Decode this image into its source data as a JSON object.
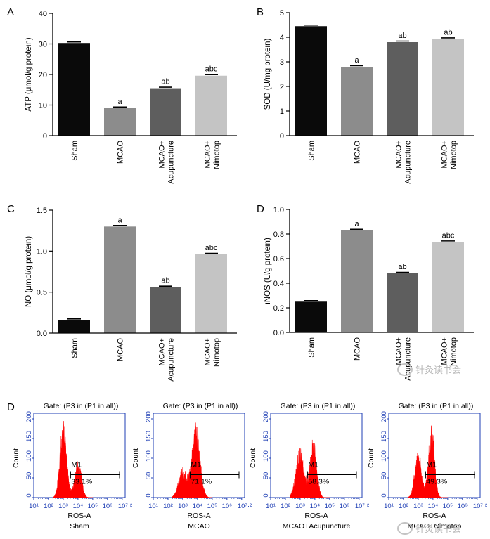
{
  "figure_watermark": "针灸读书会",
  "colors": {
    "Sham": "#0a0a0a",
    "MCAO": "#8c8c8c",
    "MCAO+Acupuncture": "#5e5e5e",
    "MCAO+Nimotop": "#c4c4c4",
    "histogram": "#ff0000",
    "flow_axis": "#1f3fb5"
  },
  "chart_data": [
    {
      "panel": "A",
      "type": "bar",
      "ylabel": "ATP (μmol/g protein)",
      "categories": [
        "Sham",
        "MCAO",
        "MCAO+\nAcupuncture",
        "MCAO+\nNimotop"
      ],
      "values": [
        30.3,
        9.0,
        15.5,
        19.6
      ],
      "annotations": [
        "",
        "a",
        "ab",
        "abc"
      ],
      "ylim": [
        0,
        40
      ],
      "yticks": [
        "0",
        "10",
        "20",
        "30",
        "40"
      ]
    },
    {
      "panel": "B",
      "type": "bar",
      "ylabel": "SOD (U/mg protein)",
      "categories": [
        "Sham",
        "MCAO",
        "MCAO+\nAcupuncture",
        "MCAO+\nNimotop"
      ],
      "values": [
        4.45,
        2.8,
        3.8,
        3.93
      ],
      "annotations": [
        "",
        "a",
        "ab",
        "ab"
      ],
      "ylim": [
        0,
        5
      ],
      "yticks": [
        "0",
        "1",
        "2",
        "3",
        "4",
        "5"
      ]
    },
    {
      "panel": "C",
      "type": "bar",
      "ylabel": "NO (μmol/g protein)",
      "categories": [
        "Sham",
        "MCAO",
        "MCAO+\nAcupuncture",
        "MCAO+\nNimotop"
      ],
      "values": [
        0.16,
        1.3,
        0.56,
        0.96
      ],
      "annotations": [
        "",
        "a",
        "ab",
        "abc"
      ],
      "ylim": [
        0,
        1.5
      ],
      "yticks": [
        "0.0",
        "0.5",
        "1.0",
        "1.5"
      ]
    },
    {
      "panel": "D",
      "type": "bar",
      "ylabel": "iNOS (U/g protein)",
      "categories": [
        "Sham",
        "MCAO",
        "MCAO+\nAcupuncture",
        "MCAO+\nNimotop"
      ],
      "values": [
        0.25,
        0.83,
        0.48,
        0.735
      ],
      "annotations": [
        "",
        "a",
        "ab",
        "abc"
      ],
      "ylim": [
        0,
        1.0
      ],
      "yticks": [
        "0.0",
        "0.2",
        "0.4",
        "0.6",
        "0.8",
        "1.0"
      ]
    },
    {
      "panel": "D",
      "type": "histogram",
      "gate": "Gate: (P3 in (P1 in all))",
      "xlabel": "ROS-A",
      "ylabel": "Count",
      "xlim_log10": [
        1,
        7.2
      ],
      "ylim": [
        0,
        200
      ],
      "yticks": [
        "0",
        "50",
        "100",
        "150",
        "200"
      ],
      "xticks": [
        "10¹",
        "10²",
        "10³",
        "10⁴",
        "10⁵",
        "10⁶",
        "10⁷·²"
      ],
      "marker": "M1",
      "panels": [
        {
          "label": "Sham",
          "percent": "33.1%",
          "peaks": [
            {
              "x": 3.0,
              "h": 185,
              "s": 0.22
            },
            {
              "x": 4.0,
              "h": 95,
              "s": 0.22
            }
          ]
        },
        {
          "label": "MCAO",
          "percent": "71.1%",
          "peaks": [
            {
              "x": 3.0,
              "h": 70,
              "s": 0.28
            },
            {
              "x": 3.9,
              "h": 175,
              "s": 0.27
            }
          ]
        },
        {
          "label": "MCAO+Acupuncture",
          "percent": "58.3%",
          "peaks": [
            {
              "x": 3.0,
              "h": 115,
              "s": 0.28
            },
            {
              "x": 3.9,
              "h": 140,
              "s": 0.22
            }
          ]
        },
        {
          "label": "MCAO+Nimotop",
          "percent": "49.3%",
          "peaks": [
            {
              "x": 3.0,
              "h": 110,
              "s": 0.23
            },
            {
              "x": 3.9,
              "h": 175,
              "s": 0.2
            }
          ]
        }
      ]
    }
  ]
}
